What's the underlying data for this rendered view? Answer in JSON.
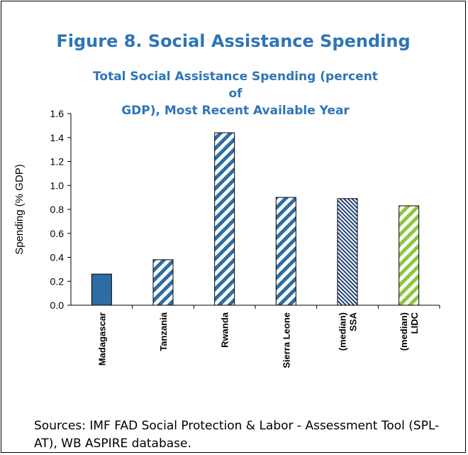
{
  "figure_title": "Figure 8. Social Assistance Spending",
  "source_note": "Sources: IMF FAD Social Protection & Labor - Assessment Tool (SPL-AT), WB ASPIRE database.",
  "colors": {
    "title": "#2E75B6",
    "bar_blue": "#2E6DA4",
    "bar_green": "#8CC63F",
    "bar_navy": "#1F3F7A"
  },
  "chart_data": {
    "type": "bar",
    "title": "Total Social Assistance Spending (percent of GDP), Most Recent Available Year",
    "title_lines": [
      "Total Social Assistance Spending (percent of",
      "GDP), Most Recent Available Year"
    ],
    "ylabel": "Spending  (% GDP)",
    "xlabel": "",
    "ylim": [
      0,
      1.6
    ],
    "yticks": [
      "0.0",
      "0.2",
      "0.4",
      "0.6",
      "0.8",
      "1.0",
      "1.2",
      "1.4",
      "1.6"
    ],
    "grid": false,
    "categories": [
      [
        "Madagascar"
      ],
      [
        "Tanzania"
      ],
      [
        "Rwanda"
      ],
      [
        "Sierra Leone"
      ],
      [
        "(median)",
        "SSA"
      ],
      [
        "(median)",
        "LIDC"
      ]
    ],
    "values": [
      0.26,
      0.38,
      1.44,
      0.9,
      0.89,
      0.83
    ],
    "fills": [
      "solid-blue",
      "stripe-blue",
      "stripe-blue",
      "stripe-blue",
      "fine-navy",
      "stripe-green"
    ]
  }
}
